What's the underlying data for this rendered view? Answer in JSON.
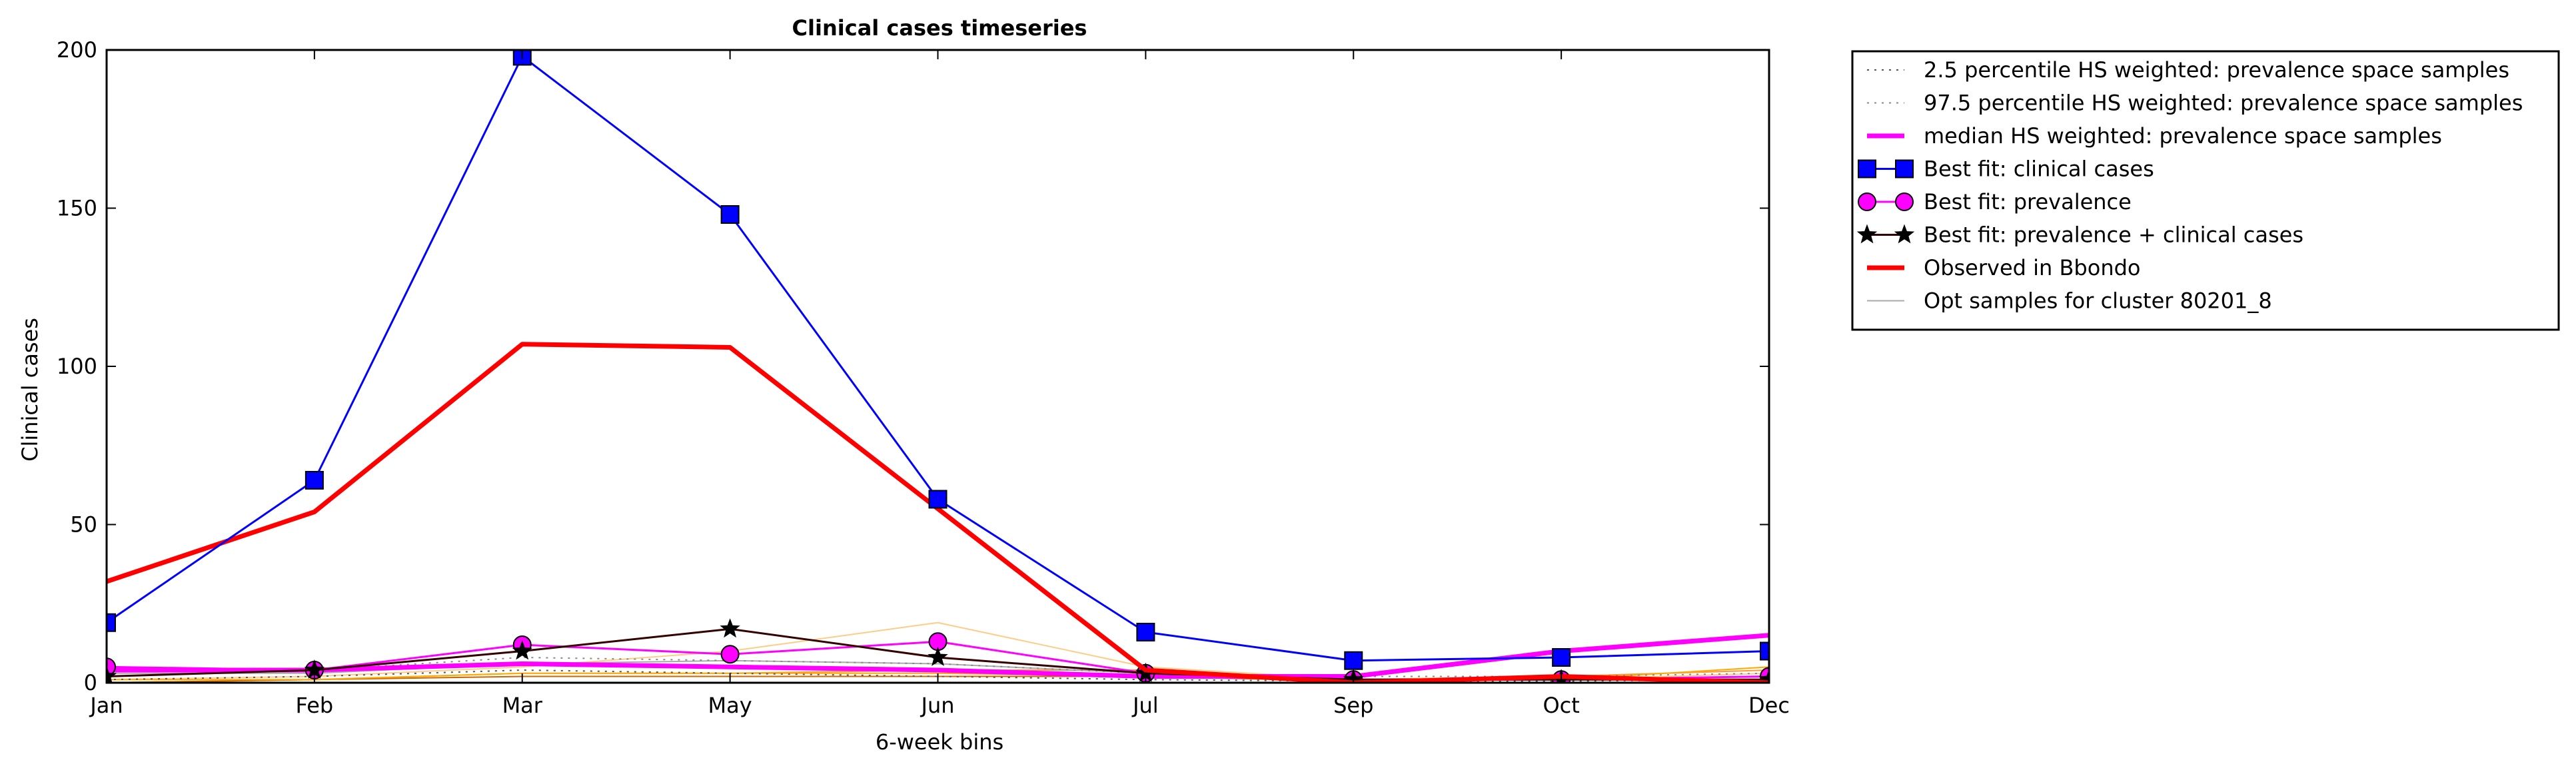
{
  "chart_data": {
    "type": "line",
    "title": "Clinical cases timeseries",
    "xlabel": "6-week bins",
    "ylabel": "Clinical cases",
    "categories": [
      "Jan",
      "Feb",
      "Mar",
      "May",
      "Jun",
      "Jul",
      "Sep",
      "Oct",
      "Dec"
    ],
    "ylim": [
      0,
      200
    ],
    "yticks": [
      0,
      50,
      100,
      150,
      200
    ],
    "grid": false,
    "legend_position": "outside-top-right",
    "series": [
      {
        "name": "2.5 percentile HS weighted: prevalence space samples",
        "color": "#555555",
        "style": "dotted",
        "values": [
          1,
          2,
          4,
          3,
          2,
          1,
          0.5,
          0.5,
          1
        ]
      },
      {
        "name": "97.5 percentile HS weighted: prevalence space samples",
        "color": "#888888",
        "style": "dotted",
        "values": [
          5,
          4,
          8,
          7,
          6,
          3,
          2,
          2,
          3
        ]
      },
      {
        "name": "median HS weighted: prevalence space samples",
        "color": "#ff00ff",
        "style": "solid-thick",
        "values": [
          4,
          4,
          6,
          5,
          4,
          2,
          2,
          10,
          15
        ]
      },
      {
        "name": "Best fit: clinical cases",
        "color": "#0000ff",
        "style": "square-marker",
        "values": [
          19,
          64,
          198,
          148,
          58,
          16,
          7,
          8,
          10
        ]
      },
      {
        "name": "Best fit: prevalence",
        "color": "#ff00ff",
        "style": "circle-marker",
        "values": [
          5,
          4,
          12,
          9,
          13,
          3,
          1,
          1,
          2
        ]
      },
      {
        "name": "Best fit: prevalence + clinical cases",
        "color": "#330000",
        "style": "star-marker",
        "values": [
          2,
          4,
          10,
          17,
          8,
          3,
          1,
          1,
          1
        ]
      },
      {
        "name": "Observed in Bbondo",
        "color": "#ff0000",
        "style": "solid-thick",
        "values": [
          32,
          54,
          107,
          106,
          55,
          4,
          0,
          2,
          0
        ]
      },
      {
        "name": "Opt samples for cluster 80201_8",
        "color": "#aaaaaa",
        "style": "thin",
        "values": [
          3,
          3,
          6,
          7,
          6,
          3,
          1,
          1,
          2
        ]
      }
    ],
    "extra_opt_samples": [
      {
        "color": "#ffcc88",
        "values": [
          1,
          2,
          5,
          10,
          19,
          5,
          1,
          1,
          3
        ]
      },
      {
        "color": "#ff9933",
        "values": [
          0,
          1,
          3,
          3,
          4,
          4,
          1,
          2,
          4
        ]
      },
      {
        "color": "#cc6600",
        "values": [
          0,
          1,
          2,
          2,
          2,
          2,
          0.5,
          1,
          2
        ]
      },
      {
        "color": "#ffaa00",
        "values": [
          1,
          1,
          3,
          3,
          3,
          2,
          1,
          1,
          5
        ]
      }
    ]
  }
}
